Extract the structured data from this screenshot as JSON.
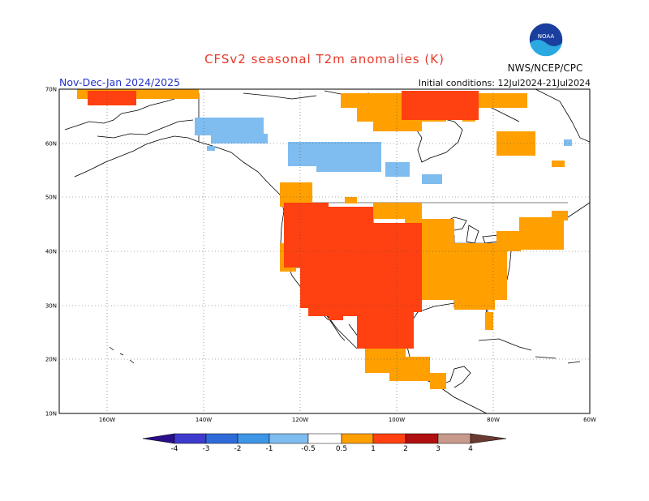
{
  "title": "CFSv2 seasonal T2m anomalies (K)",
  "agency": "NWS/NCEP/CPC",
  "period": "Nov-Dec-Jan 2024/2025",
  "initial_conditions": "Initial conditions: 12Jul2024-21Jul2024",
  "lat_labels": [
    "70N",
    "60N",
    "50N",
    "40N",
    "30N",
    "20N",
    "10N"
  ],
  "lon_labels": [
    "160W",
    "140W",
    "120W",
    "100W",
    "80W",
    "60W"
  ],
  "legend": {
    "ticks": [
      "-4",
      "-3",
      "-2",
      "-1",
      "-0.5",
      "0.5",
      "1",
      "2",
      "3",
      "4"
    ],
    "colors": {
      "lt_-4": "#2a0f8a",
      "-4_-3": "#3e3bcc",
      "-3_-2": "#2f6bd8",
      "-2_-1": "#3f95e6",
      "-1_-0.5": "#7fbcf0",
      "-0.5_0.5": "#ffffff",
      "0.5_1": "#ff9f00",
      "1_2": "#ff4010",
      "2_3": "#b01010",
      "3_4": "#c89a8c",
      "gt_4": "#6a3a30"
    }
  },
  "logo_text": "NOAA"
}
